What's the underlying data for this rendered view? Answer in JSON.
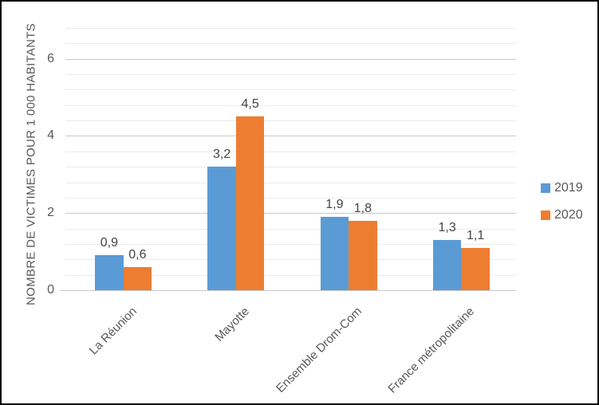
{
  "chart_data": {
    "type": "bar",
    "title": "",
    "ylabel": "NOMBRE DE VICTIMES POUR 1 000 HABITANTS",
    "xlabel": "",
    "categories": [
      "La Réunion",
      "Mayotte",
      "Ensemble Drom-Com",
      "France métropolitaine"
    ],
    "series": [
      {
        "name": "2019",
        "color": "#5B9BD5",
        "values": [
          0.9,
          3.2,
          1.9,
          1.3
        ],
        "labels": [
          "0,9",
          "3,2",
          "1,9",
          "1,3"
        ]
      },
      {
        "name": "2020",
        "color": "#ED7D31",
        "values": [
          0.6,
          4.5,
          1.8,
          1.1
        ],
        "labels": [
          "0,6",
          "4,5",
          "1,8",
          "1,1"
        ]
      }
    ],
    "yticks": [
      0,
      2,
      4,
      6
    ],
    "ylim": [
      0,
      6.8
    ],
    "major_unit": 2,
    "minor_unit": 0.4,
    "grid": "major+minor horizontal",
    "legend_position": "right"
  },
  "colors": {
    "grid_major": "#C9C9C9",
    "grid_minor": "#EBEBEB",
    "axis_line": "#C9C9C9",
    "text": "#595959",
    "value_label_text": "#444444",
    "background": "#FFFFFF",
    "border": "#000000"
  }
}
